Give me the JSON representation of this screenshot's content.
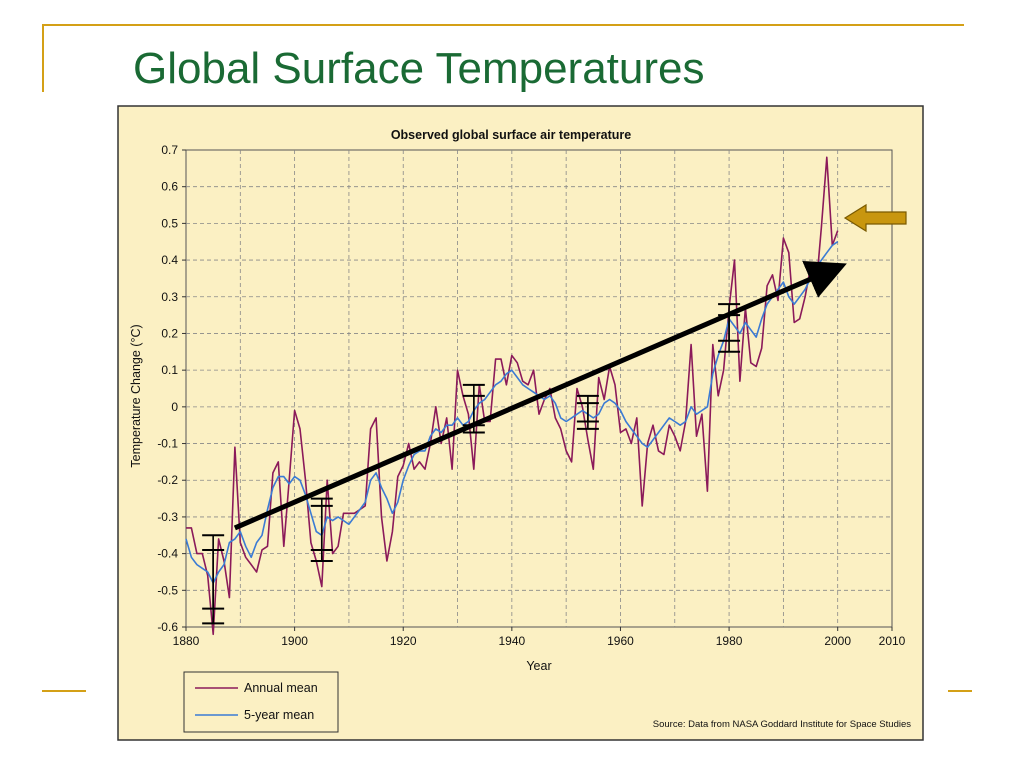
{
  "slide": {
    "title": "Global Surface Temperatures",
    "accent_color": "#d4a017",
    "title_color": "#1a6a34"
  },
  "chart_data": {
    "type": "line",
    "title": "Observed global surface air temperature",
    "xlabel": "Year",
    "ylabel": "Temperature Change (°C)",
    "xlim": [
      1880,
      2010
    ],
    "ylim": [
      -0.6,
      0.7
    ],
    "x_ticks": [
      1880,
      1900,
      1920,
      1940,
      1960,
      1980,
      2000,
      2010
    ],
    "y_ticks": [
      0.7,
      0.6,
      0.5,
      0.4,
      0.3,
      0.2,
      0.1,
      0,
      -0.1,
      -0.2,
      -0.3,
      -0.4,
      -0.5,
      -0.6
    ],
    "grid": true,
    "background_color": "#fbf0c3",
    "source": "Source: Data from NASA Goddard Institute for Space Studies",
    "legend_position": "bottom-left",
    "series": [
      {
        "name": "Annual mean",
        "color": "#8b1a5a",
        "x": [
          1880,
          1881,
          1882,
          1883,
          1884,
          1885,
          1886,
          1887,
          1888,
          1889,
          1890,
          1891,
          1892,
          1893,
          1894,
          1895,
          1896,
          1897,
          1898,
          1899,
          1900,
          1901,
          1902,
          1903,
          1904,
          1905,
          1906,
          1907,
          1908,
          1909,
          1910,
          1911,
          1912,
          1913,
          1914,
          1915,
          1916,
          1917,
          1918,
          1919,
          1920,
          1921,
          1922,
          1923,
          1924,
          1925,
          1926,
          1927,
          1928,
          1929,
          1930,
          1931,
          1932,
          1933,
          1934,
          1935,
          1936,
          1937,
          1938,
          1939,
          1940,
          1941,
          1942,
          1943,
          1944,
          1945,
          1946,
          1947,
          1948,
          1949,
          1950,
          1951,
          1952,
          1953,
          1954,
          1955,
          1956,
          1957,
          1958,
          1959,
          1960,
          1961,
          1962,
          1963,
          1964,
          1965,
          1966,
          1967,
          1968,
          1969,
          1970,
          1971,
          1972,
          1973,
          1974,
          1975,
          1976,
          1977,
          1978,
          1979,
          1980,
          1981,
          1982,
          1983,
          1984,
          1985,
          1986,
          1987,
          1988,
          1989,
          1990,
          1991,
          1992,
          1993,
          1994,
          1995,
          1996,
          1997,
          1998,
          1999,
          2000
        ],
        "values": [
          -0.33,
          -0.33,
          -0.4,
          -0.4,
          -0.46,
          -0.62,
          -0.36,
          -0.42,
          -0.52,
          -0.11,
          -0.37,
          -0.41,
          -0.43,
          -0.45,
          -0.39,
          -0.38,
          -0.18,
          -0.15,
          -0.38,
          -0.2,
          -0.01,
          -0.06,
          -0.2,
          -0.37,
          -0.42,
          -0.49,
          -0.2,
          -0.4,
          -0.38,
          -0.29,
          -0.29,
          -0.29,
          -0.28,
          -0.27,
          -0.06,
          -0.03,
          -0.3,
          -0.42,
          -0.34,
          -0.19,
          -0.16,
          -0.1,
          -0.17,
          -0.15,
          -0.17,
          -0.1,
          0.0,
          -0.1,
          -0.03,
          -0.17,
          0.1,
          0.03,
          -0.02,
          -0.17,
          0.06,
          -0.04,
          -0.04,
          0.13,
          0.13,
          0.06,
          0.14,
          0.12,
          0.07,
          0.06,
          0.1,
          -0.02,
          0.02,
          0.05,
          -0.03,
          -0.06,
          -0.12,
          -0.15,
          0.05,
          0.0,
          -0.09,
          -0.17,
          0.08,
          0.02,
          0.11,
          0.06,
          -0.07,
          -0.06,
          -0.1,
          -0.03,
          -0.27,
          -0.1,
          -0.05,
          -0.12,
          -0.13,
          -0.05,
          -0.08,
          -0.12,
          -0.04,
          0.17,
          -0.08,
          -0.02,
          -0.23,
          0.17,
          0.03,
          0.1,
          0.27,
          0.4,
          0.07,
          0.27,
          0.12,
          0.11,
          0.16,
          0.33,
          0.36,
          0.29,
          0.46,
          0.42,
          0.23,
          0.24,
          0.3,
          0.38,
          0.32,
          0.49,
          0.68,
          0.44,
          0.48
        ]
      },
      {
        "name": "5-year mean",
        "color": "#3b7bd4",
        "x": [
          1880,
          1881,
          1882,
          1883,
          1884,
          1885,
          1886,
          1887,
          1888,
          1889,
          1890,
          1891,
          1892,
          1893,
          1894,
          1895,
          1896,
          1897,
          1898,
          1899,
          1900,
          1901,
          1902,
          1903,
          1904,
          1905,
          1906,
          1907,
          1908,
          1909,
          1910,
          1911,
          1912,
          1913,
          1914,
          1915,
          1916,
          1917,
          1918,
          1919,
          1920,
          1921,
          1922,
          1923,
          1924,
          1925,
          1926,
          1927,
          1928,
          1929,
          1930,
          1931,
          1932,
          1933,
          1934,
          1935,
          1936,
          1937,
          1938,
          1939,
          1940,
          1941,
          1942,
          1943,
          1944,
          1945,
          1946,
          1947,
          1948,
          1949,
          1950,
          1951,
          1952,
          1953,
          1954,
          1955,
          1956,
          1957,
          1958,
          1959,
          1960,
          1961,
          1962,
          1963,
          1964,
          1965,
          1966,
          1967,
          1968,
          1969,
          1970,
          1971,
          1972,
          1973,
          1974,
          1975,
          1976,
          1977,
          1978,
          1979,
          1980,
          1981,
          1982,
          1983,
          1984,
          1985,
          1986,
          1987,
          1988,
          1989,
          1990,
          1991,
          1992,
          1993,
          1994,
          1995,
          1996,
          1997,
          1998,
          1999,
          2000
        ],
        "values": [
          -0.36,
          -0.41,
          -0.43,
          -0.44,
          -0.45,
          -0.48,
          -0.45,
          -0.43,
          -0.37,
          -0.36,
          -0.34,
          -0.38,
          -0.41,
          -0.37,
          -0.35,
          -0.28,
          -0.22,
          -0.19,
          -0.19,
          -0.21,
          -0.19,
          -0.2,
          -0.24,
          -0.29,
          -0.34,
          -0.35,
          -0.3,
          -0.31,
          -0.3,
          -0.31,
          -0.32,
          -0.3,
          -0.28,
          -0.26,
          -0.2,
          -0.18,
          -0.22,
          -0.25,
          -0.29,
          -0.26,
          -0.2,
          -0.16,
          -0.13,
          -0.12,
          -0.12,
          -0.08,
          -0.06,
          -0.07,
          -0.05,
          -0.05,
          -0.03,
          -0.05,
          -0.04,
          -0.01,
          0.01,
          0.02,
          0.04,
          0.06,
          0.07,
          0.09,
          0.1,
          0.08,
          0.06,
          0.05,
          0.04,
          0.03,
          0.02,
          0.03,
          0.01,
          -0.03,
          -0.04,
          -0.03,
          -0.02,
          -0.01,
          -0.02,
          -0.03,
          -0.02,
          0.01,
          0.02,
          0.01,
          -0.01,
          -0.04,
          -0.06,
          -0.08,
          -0.1,
          -0.11,
          -0.09,
          -0.07,
          -0.05,
          -0.03,
          -0.04,
          -0.05,
          -0.04,
          0.0,
          -0.02,
          -0.01,
          0.0,
          0.09,
          0.14,
          0.18,
          0.24,
          0.22,
          0.2,
          0.23,
          0.21,
          0.19,
          0.24,
          0.28,
          0.3,
          0.32,
          0.34,
          0.3,
          0.28,
          0.3,
          0.32,
          0.35,
          0.38,
          0.4,
          0.42,
          0.44,
          0.45
        ]
      }
    ],
    "error_bars": [
      {
        "x": 1885,
        "lower": -0.59,
        "upper": -0.35
      },
      {
        "x": 1885,
        "lower": -0.55,
        "upper": -0.39
      },
      {
        "x": 1905,
        "lower": -0.42,
        "upper": -0.25
      },
      {
        "x": 1905,
        "lower": -0.39,
        "upper": -0.27
      },
      {
        "x": 1933,
        "lower": -0.07,
        "upper": 0.06
      },
      {
        "x": 1933,
        "lower": -0.05,
        "upper": 0.03
      },
      {
        "x": 1954,
        "lower": -0.06,
        "upper": 0.03
      },
      {
        "x": 1954,
        "lower": -0.04,
        "upper": 0.01
      },
      {
        "x": 1980,
        "lower": 0.15,
        "upper": 0.28
      },
      {
        "x": 1980,
        "lower": 0.18,
        "upper": 0.25
      }
    ],
    "trend_arrow": {
      "x_start": 1889,
      "y_start": -0.33,
      "x_end": 2000,
      "y_end": 0.38,
      "color": "#000000"
    },
    "highlight_arrow": {
      "points_to_x": 2001,
      "points_to_y": 0.52,
      "color": "#c8960f"
    }
  }
}
